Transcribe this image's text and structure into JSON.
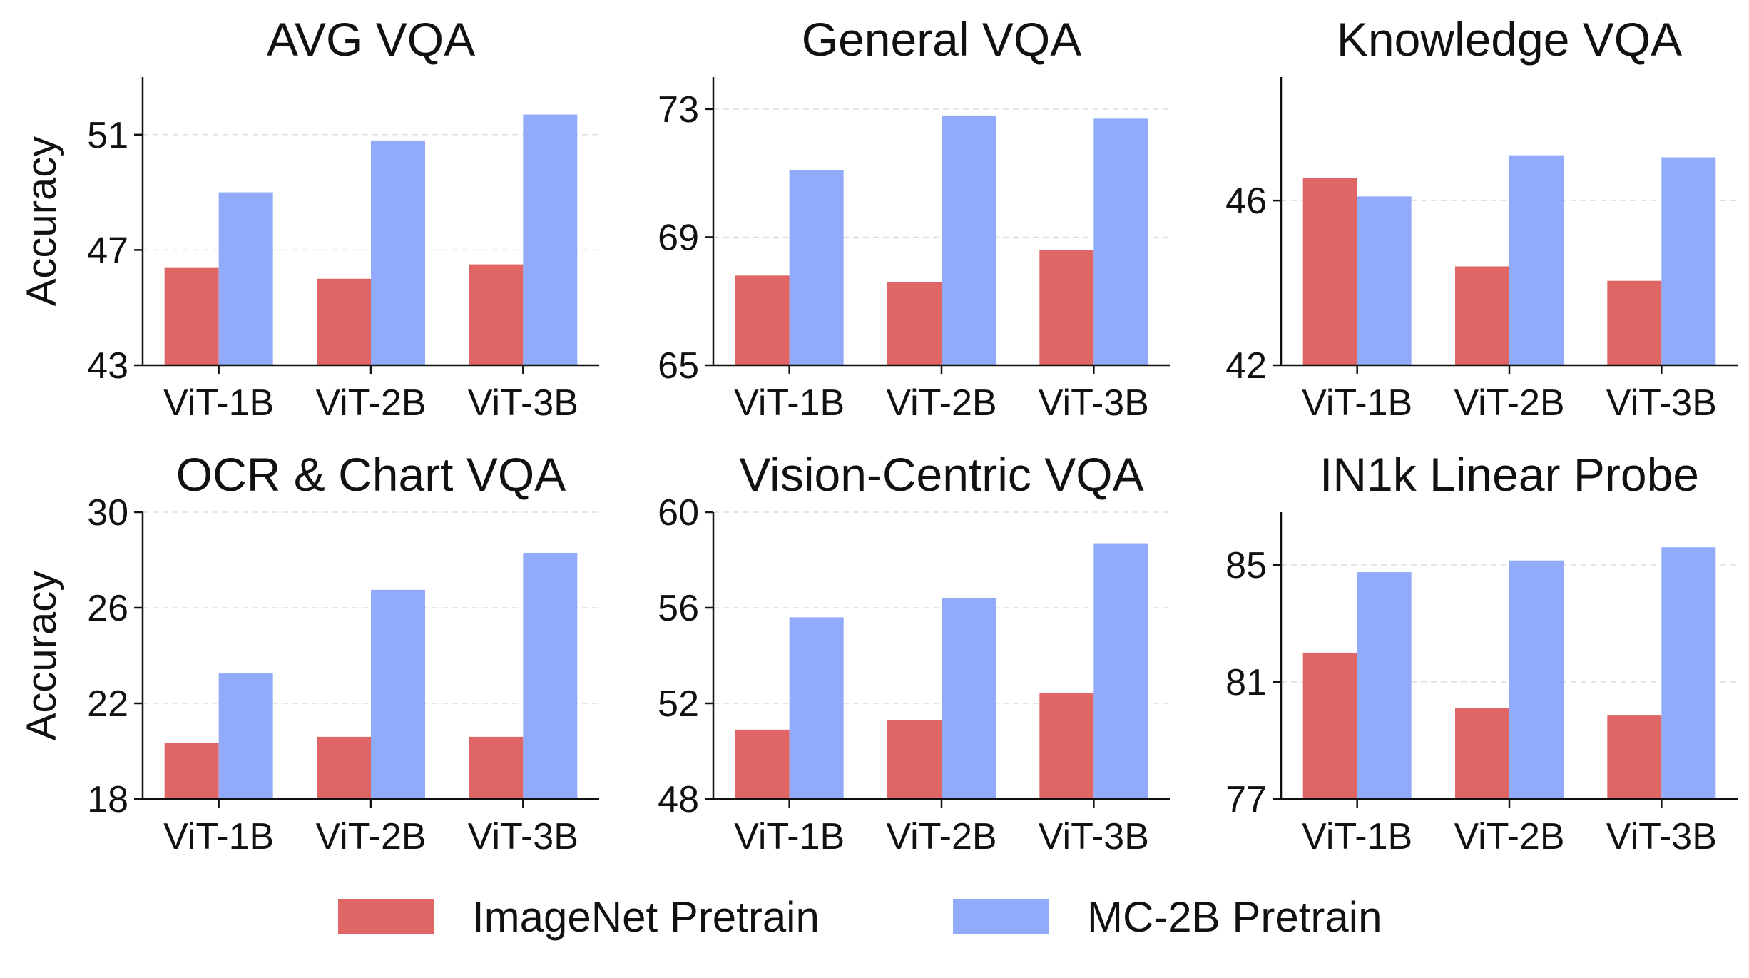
{
  "colors": {
    "imagenet": "#e06666",
    "mc2b": "#91aaf9"
  },
  "legend": {
    "imagenet_label": "ImageNet Pretrain",
    "mc2b_label": "MC-2B Pretrain"
  },
  "chart_data": [
    {
      "type": "bar",
      "title": "AVG VQA",
      "ylabel": "Accuracy",
      "categories": [
        "ViT-1B",
        "ViT-2B",
        "ViT-3B"
      ],
      "ylim": [
        43,
        53
      ],
      "yticks": [
        43,
        47,
        51
      ],
      "grid": true,
      "series": [
        {
          "name": "ImageNet Pretrain",
          "values": [
            46.4,
            46.0,
            46.5
          ]
        },
        {
          "name": "MC-2B Pretrain",
          "values": [
            49.0,
            50.8,
            51.7
          ]
        }
      ]
    },
    {
      "type": "bar",
      "title": "General VQA",
      "ylabel": "",
      "categories": [
        "ViT-1B",
        "ViT-2B",
        "ViT-3B"
      ],
      "ylim": [
        65,
        74
      ],
      "yticks": [
        65,
        69,
        73
      ],
      "grid": true,
      "series": [
        {
          "name": "ImageNet Pretrain",
          "values": [
            67.8,
            67.6,
            68.6
          ]
        },
        {
          "name": "MC-2B Pretrain",
          "values": [
            71.1,
            72.8,
            72.7
          ]
        }
      ]
    },
    {
      "type": "bar",
      "title": "Knowledge VQA",
      "ylabel": "",
      "categories": [
        "ViT-1B",
        "ViT-2B",
        "ViT-3B"
      ],
      "ylim": [
        42,
        49
      ],
      "yticks": [
        42,
        46
      ],
      "grid": true,
      "series": [
        {
          "name": "ImageNet Pretrain",
          "values": [
            46.55,
            44.4,
            44.05
          ]
        },
        {
          "name": "MC-2B Pretrain",
          "values": [
            46.1,
            47.1,
            47.05
          ]
        }
      ]
    },
    {
      "type": "bar",
      "title": "OCR & Chart VQA",
      "ylabel": "Accuracy",
      "categories": [
        "ViT-1B",
        "ViT-2B",
        "ViT-3B"
      ],
      "ylim": [
        18,
        30
      ],
      "yticks": [
        18,
        22,
        26,
        30
      ],
      "grid": true,
      "series": [
        {
          "name": "ImageNet Pretrain",
          "values": [
            20.35,
            20.6,
            20.6
          ]
        },
        {
          "name": "MC-2B Pretrain",
          "values": [
            23.25,
            26.75,
            28.3
          ]
        }
      ]
    },
    {
      "type": "bar",
      "title": "Vision-Centric VQA",
      "ylabel": "",
      "categories": [
        "ViT-1B",
        "ViT-2B",
        "ViT-3B"
      ],
      "ylim": [
        48,
        60
      ],
      "yticks": [
        48,
        52,
        56,
        60
      ],
      "grid": true,
      "series": [
        {
          "name": "ImageNet Pretrain",
          "values": [
            50.9,
            51.3,
            52.45
          ]
        },
        {
          "name": "MC-2B Pretrain",
          "values": [
            55.6,
            56.4,
            58.7
          ]
        }
      ]
    },
    {
      "type": "bar",
      "title": "IN1k Linear Probe",
      "ylabel": "",
      "categories": [
        "ViT-1B",
        "ViT-2B",
        "ViT-3B"
      ],
      "ylim": [
        77,
        86.8
      ],
      "yticks": [
        77,
        81,
        85
      ],
      "grid": true,
      "series": [
        {
          "name": "ImageNet Pretrain",
          "values": [
            82.0,
            80.1,
            79.85
          ]
        },
        {
          "name": "MC-2B Pretrain",
          "values": [
            84.75,
            85.15,
            85.6
          ]
        }
      ]
    }
  ]
}
